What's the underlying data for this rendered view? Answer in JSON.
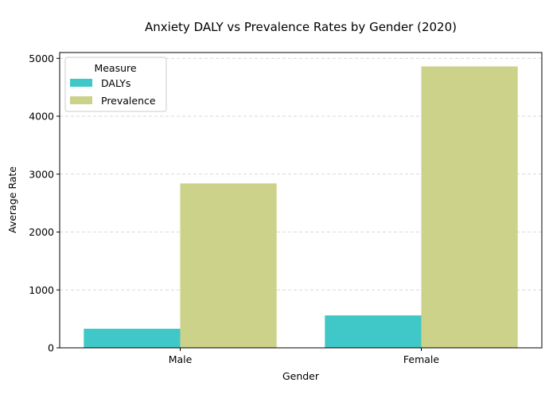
{
  "chart_data": {
    "type": "bar",
    "title": "Anxiety DALY vs Prevalence Rates by Gender (2020)",
    "xlabel": "Gender",
    "ylabel": "Average Rate",
    "categories": [
      "Male",
      "Female"
    ],
    "series": [
      {
        "name": "DALYs",
        "values": [
          330,
          560
        ],
        "color": "#40c8c8"
      },
      {
        "name": "Prevalence",
        "values": [
          2840,
          4860
        ],
        "color": "#ccd28a"
      }
    ],
    "ylim": [
      0,
      5100
    ],
    "yticks": [
      0,
      1000,
      2000,
      3000,
      4000,
      5000
    ],
    "grid": "y-dashed",
    "legend": {
      "title": "Measure",
      "placement": "top-left"
    }
  }
}
